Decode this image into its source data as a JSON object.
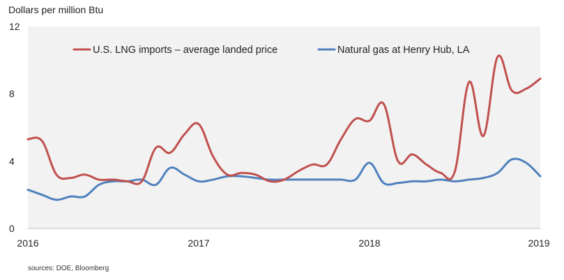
{
  "chart_data": {
    "type": "line",
    "title": "",
    "ylabel": "Dollars per million Btu",
    "xlabel": "",
    "ylim": [
      0,
      12
    ],
    "yticks": [
      0,
      4,
      8,
      12
    ],
    "yticks_text": [
      "0",
      "4",
      "8",
      "12"
    ],
    "xlim": [
      2016,
      2019
    ],
    "xticks": [
      2016,
      2017,
      2018,
      2019
    ],
    "xticks_text": [
      "2016",
      "2017",
      "2018",
      "2019"
    ],
    "grid": false,
    "legend_position": "top",
    "source_note": "sources:  DOE, Bloomberg",
    "series": [
      {
        "name": "U.S. LNG imports – average landed price",
        "color": "#c0504d",
        "x": [
          2016.0,
          2016.083,
          2016.167,
          2016.25,
          2016.333,
          2016.417,
          2016.5,
          2016.583,
          2016.667,
          2016.75,
          2016.833,
          2016.917,
          2017.0,
          2017.083,
          2017.167,
          2017.25,
          2017.333,
          2017.417,
          2017.5,
          2017.583,
          2017.667,
          2017.75,
          2017.833,
          2017.917,
          2018.0,
          2018.083,
          2018.167,
          2018.25,
          2018.333,
          2018.417,
          2018.5,
          2018.583,
          2018.667,
          2018.75,
          2018.833,
          2018.917,
          2019.0
        ],
        "values": [
          5.3,
          5.2,
          3.2,
          3.0,
          3.2,
          2.9,
          2.9,
          2.8,
          2.8,
          4.8,
          4.5,
          5.6,
          6.2,
          4.3,
          3.2,
          3.3,
          3.2,
          2.8,
          2.9,
          3.4,
          3.8,
          3.8,
          5.3,
          6.5,
          6.4,
          7.4,
          4.0,
          4.4,
          3.8,
          3.3,
          3.4,
          8.7,
          5.5,
          10.2,
          8.2,
          8.3,
          8.9
        ]
      },
      {
        "name": "Natural gas at Henry Hub, LA",
        "color": "#4f81bd",
        "x": [
          2016.0,
          2016.083,
          2016.167,
          2016.25,
          2016.333,
          2016.417,
          2016.5,
          2016.583,
          2016.667,
          2016.75,
          2016.833,
          2016.917,
          2017.0,
          2017.083,
          2017.167,
          2017.25,
          2017.333,
          2017.417,
          2017.5,
          2017.583,
          2017.667,
          2017.75,
          2017.833,
          2017.917,
          2018.0,
          2018.083,
          2018.167,
          2018.25,
          2018.333,
          2018.417,
          2018.5,
          2018.583,
          2018.667,
          2018.75,
          2018.833,
          2018.917,
          2019.0
        ],
        "values": [
          2.3,
          2.0,
          1.7,
          1.9,
          1.9,
          2.6,
          2.8,
          2.8,
          2.9,
          2.6,
          3.6,
          3.2,
          2.8,
          2.9,
          3.1,
          3.1,
          3.0,
          2.9,
          2.9,
          2.9,
          2.9,
          2.9,
          2.9,
          2.9,
          3.9,
          2.7,
          2.7,
          2.8,
          2.8,
          2.9,
          2.8,
          2.9,
          3.0,
          3.3,
          4.1,
          3.9,
          3.1
        ]
      }
    ]
  }
}
